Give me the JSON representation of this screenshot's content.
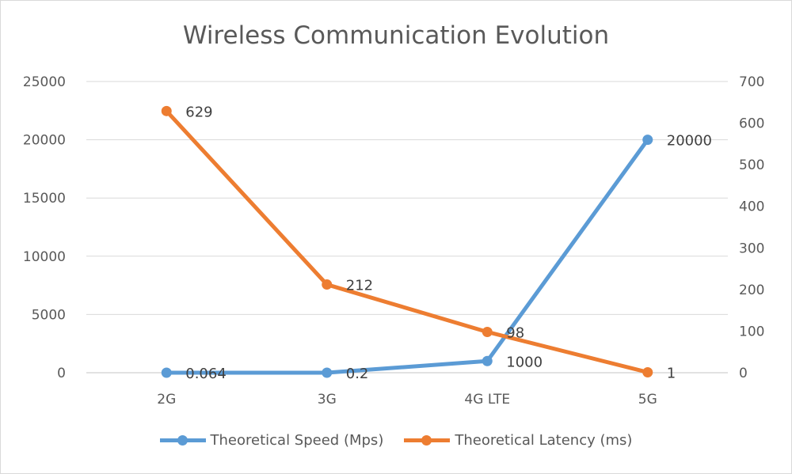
{
  "chart_data": {
    "type": "line",
    "title": "Wireless Communication Evolution",
    "categories": [
      "2G",
      "3G",
      "4G LTE",
      "5G"
    ],
    "y_left": {
      "ylim": [
        0,
        25000
      ],
      "ticks": [
        "0",
        "5000",
        "10000",
        "15000",
        "20000",
        "25000"
      ]
    },
    "y_right": {
      "ylim": [
        0,
        700
      ],
      "ticks": [
        "0",
        "100",
        "200",
        "300",
        "400",
        "500",
        "600",
        "700"
      ]
    },
    "grid": true,
    "legend_position": "bottom",
    "series": [
      {
        "name": "Theoretical Speed (Mps)",
        "axis": "left",
        "color": "#5b9bd5",
        "values": [
          0.064,
          0.2,
          1000,
          20000
        ],
        "labels": [
          "0.064",
          "0.2",
          "1000",
          "20000"
        ]
      },
      {
        "name": "Theoretical Latency (ms)",
        "axis": "right",
        "color": "#ed7d31",
        "values": [
          629,
          212,
          98,
          1
        ],
        "labels": [
          "629",
          "212",
          "98",
          "1"
        ]
      }
    ]
  }
}
